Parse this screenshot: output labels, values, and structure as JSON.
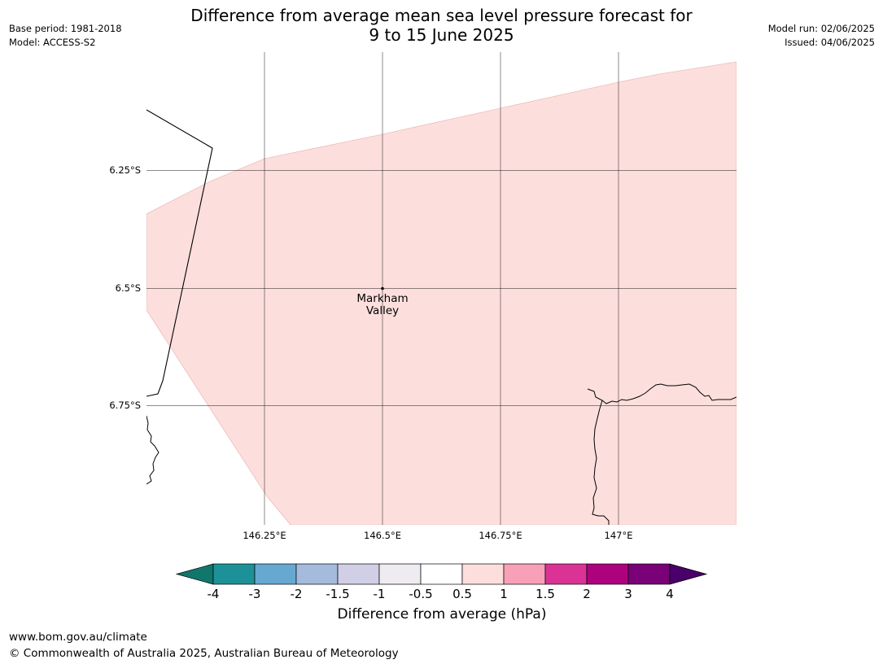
{
  "title": {
    "line1": "Difference from average mean sea level pressure forecast for",
    "line2": "9 to 15 June 2025"
  },
  "meta_left": {
    "base_period": "Base period: 1981-2018",
    "model": "Model: ACCESS-S2"
  },
  "meta_right": {
    "model_run": "Model run: 02/06/2025",
    "issued": "Issued: 04/06/2025"
  },
  "map": {
    "lat_labels": [
      "6.25°S",
      "6.5°S",
      "6.75°S"
    ],
    "lon_labels": [
      "146.25°E",
      "146.5°E",
      "146.75°E",
      "147°E"
    ],
    "place": {
      "name_line1": "Markham",
      "name_line2": "Valley"
    },
    "shaded_category": "0.5 to 1 hPa",
    "shade_color": "#fcdfdd"
  },
  "colorbar": {
    "title": "Difference from average (hPa)",
    "tick_labels": [
      "-4",
      "-3",
      "-2",
      "-1.5",
      "-1",
      "-0.5",
      "0.5",
      "1",
      "1.5",
      "2",
      "3",
      "4"
    ],
    "colors": [
      "#10776c",
      "#1c9298",
      "#67a8d1",
      "#a5bbdd",
      "#d0cfe6",
      "#eeebf1",
      "#ffffff",
      "#fcdfdd",
      "#f8a0b7",
      "#da3395",
      "#ae017e",
      "#7a0177",
      "#49006a"
    ]
  },
  "footer": {
    "url": "www.bom.gov.au/climate",
    "copyright": "© Commonwealth of Australia 2025, Australian Bureau of Meteorology"
  }
}
